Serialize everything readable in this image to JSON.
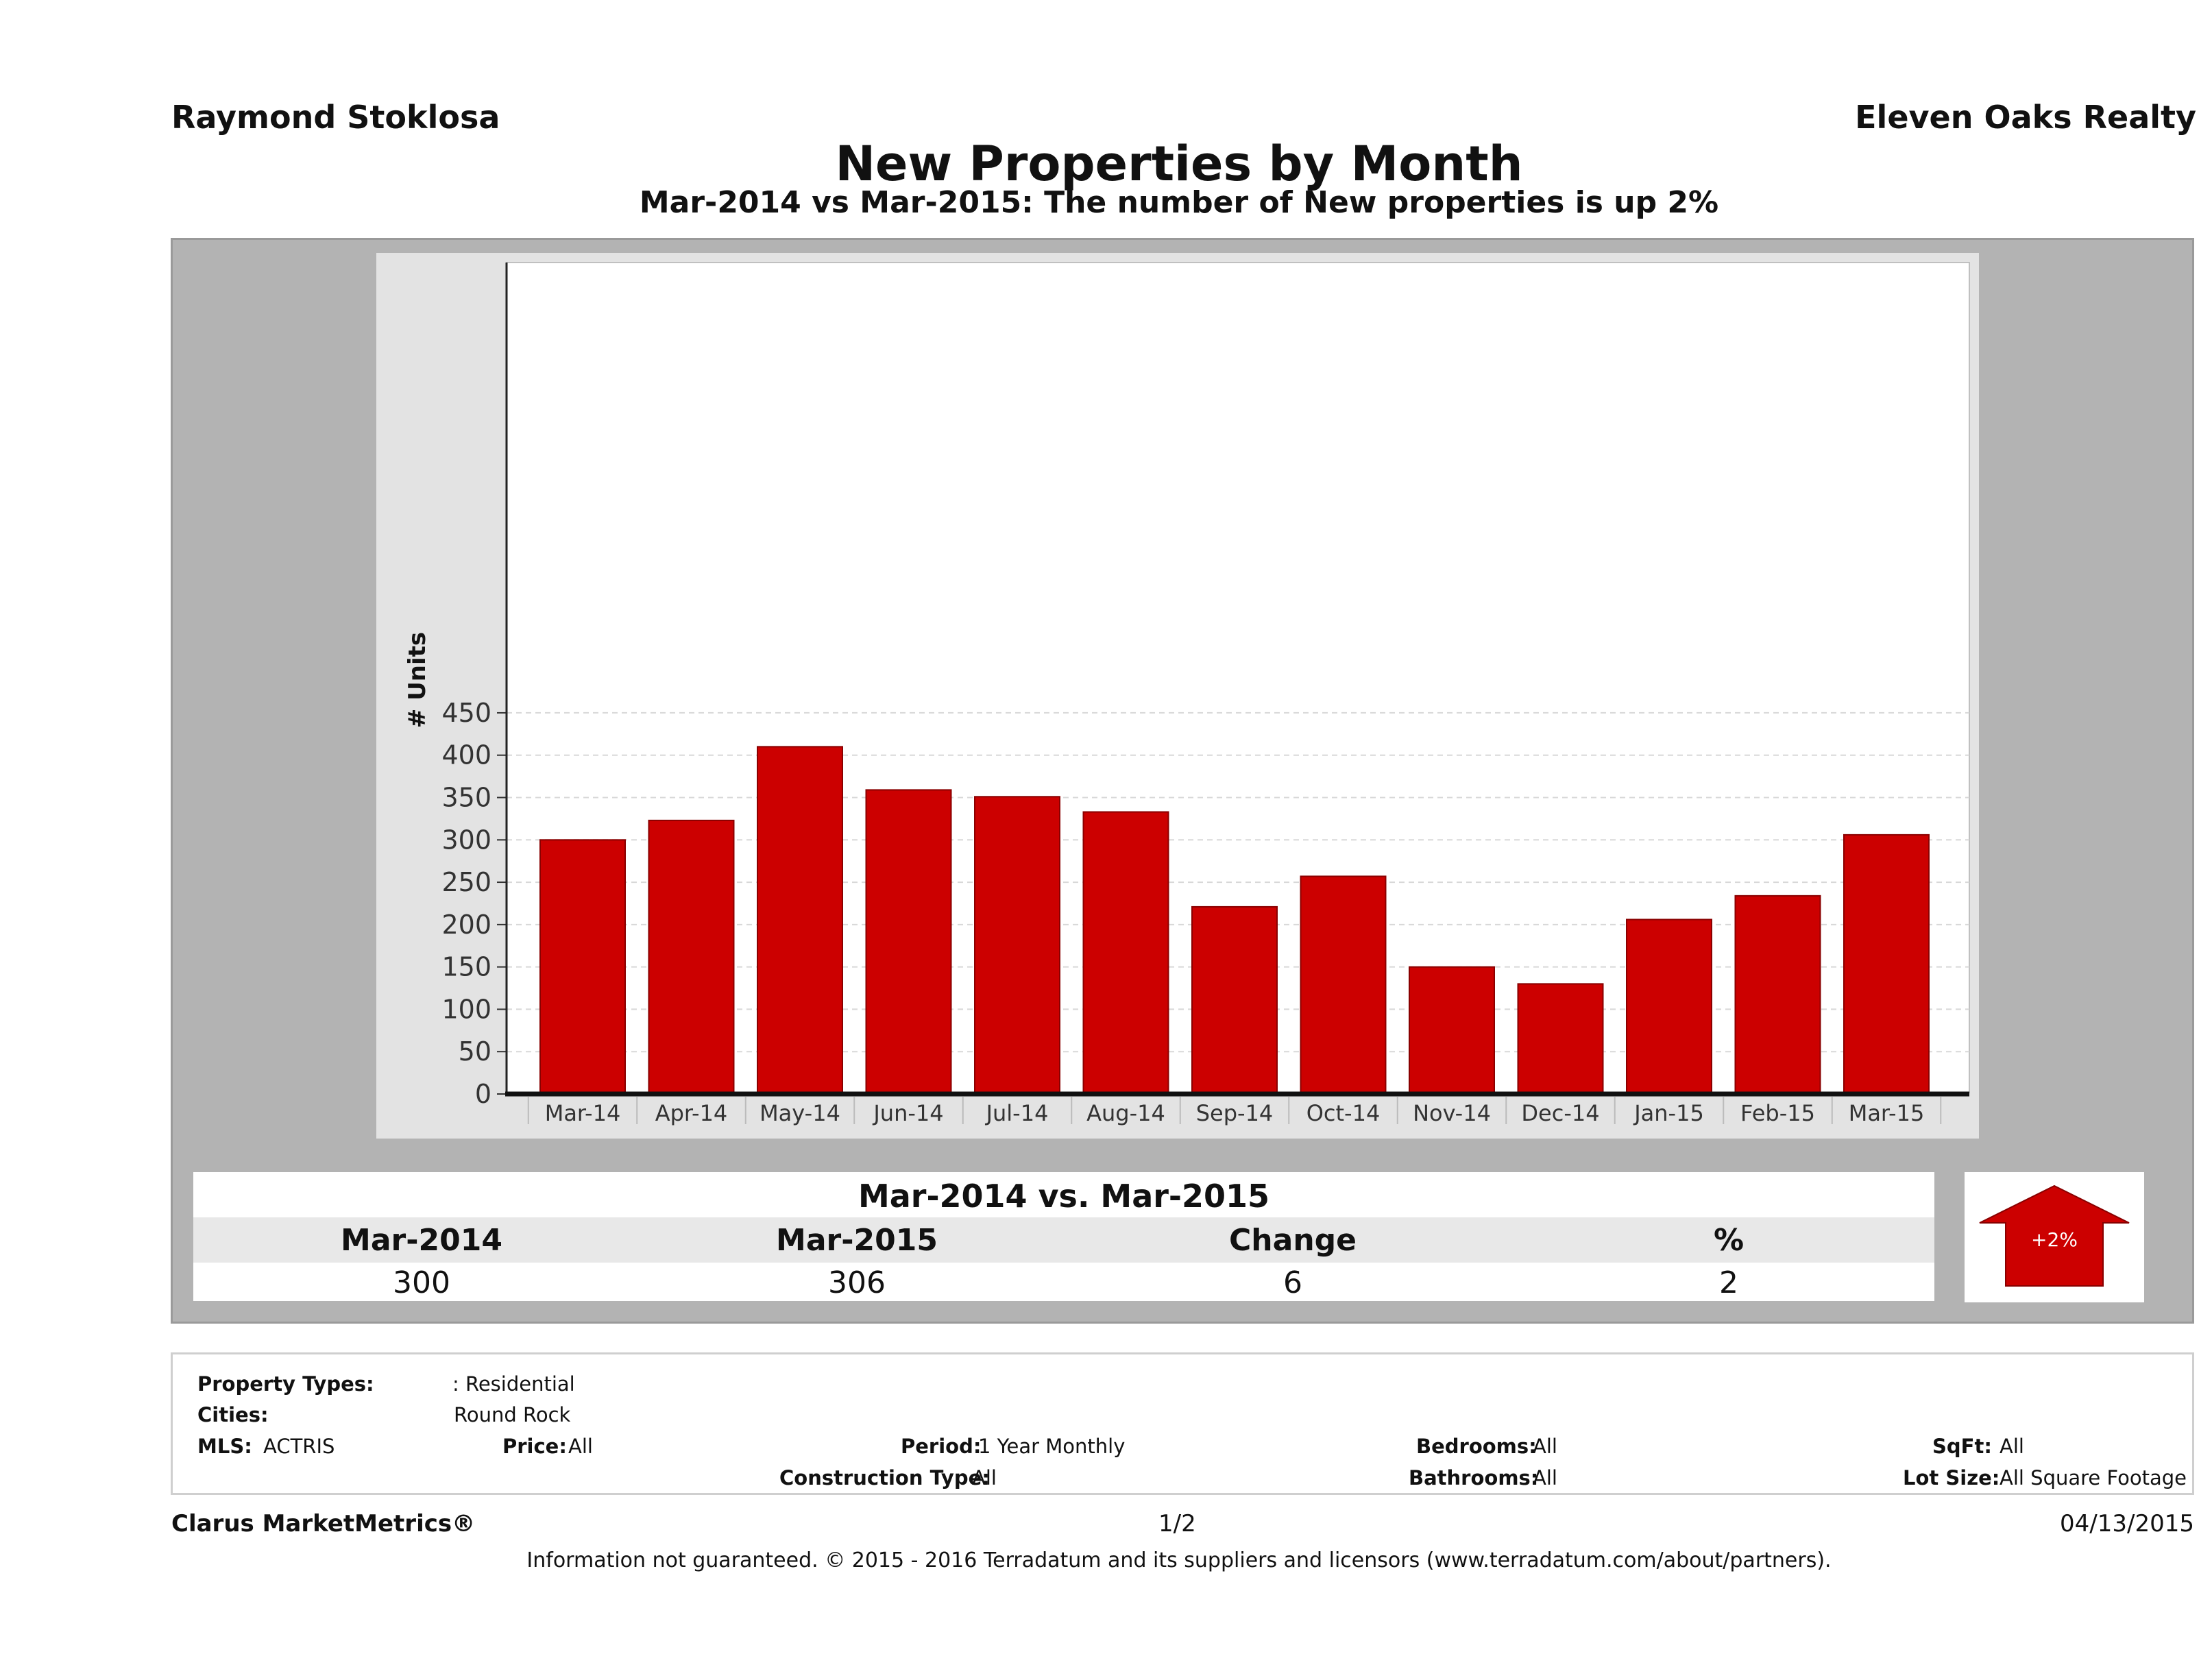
{
  "header": {
    "agent_name": "Raymond Stoklosa",
    "brokerage": "Eleven Oaks Realty",
    "title": "New Properties by Month",
    "subtitle": "Mar-2014 vs Mar-2015: The number of New  properties is up 2%"
  },
  "chart_data": {
    "type": "bar",
    "categories": [
      "Mar-14",
      "Apr-14",
      "May-14",
      "Jun-14",
      "Jul-14",
      "Aug-14",
      "Sep-14",
      "Oct-14",
      "Nov-14",
      "Dec-14",
      "Jan-15",
      "Feb-15",
      "Mar-15"
    ],
    "values": [
      300,
      323,
      410,
      359,
      351,
      333,
      221,
      257,
      150,
      130,
      206,
      234,
      306
    ],
    "ylabel": "# Units",
    "yticks": [
      0,
      50,
      100,
      150,
      200,
      250,
      300,
      350,
      400,
      450
    ],
    "ylim": [
      0,
      490
    ],
    "bar_color": "#cc0000",
    "grid": true
  },
  "summary": {
    "title": "Mar-2014 vs. Mar-2015",
    "headers": [
      "Mar-2014",
      "Mar-2015",
      "Change",
      "%"
    ],
    "values": [
      "300",
      "306",
      "6",
      "2"
    ],
    "badge": "+2%",
    "badge_color": "#cc0000"
  },
  "criteria": {
    "property_types_label": "Property Types:",
    "property_types_value": ": Residential",
    "cities_label": "Cities:",
    "cities_value": "Round Rock",
    "mls_label": "MLS:",
    "mls_value": "ACTRIS",
    "price_label": "Price:",
    "price_value": "All",
    "period_label": "Period:",
    "period_value": "1 Year Monthly",
    "construction_label": "Construction Type:",
    "construction_value": "All",
    "bedrooms_label": "Bedrooms:",
    "bedrooms_value": "All",
    "bathrooms_label": "Bathrooms:",
    "bathrooms_value": "All",
    "sqft_label": "SqFt:",
    "sqft_value": "All",
    "lotsize_label": "Lot Size:",
    "lotsize_value": "All Square Footage"
  },
  "footer": {
    "brand": "Clarus MarketMetrics®",
    "page": "1/2",
    "date": "04/13/2015",
    "disclaimer": "Information not guaranteed. © 2015 - 2016 Terradatum and its suppliers and licensors (www.terradatum.com/about/partners)."
  }
}
